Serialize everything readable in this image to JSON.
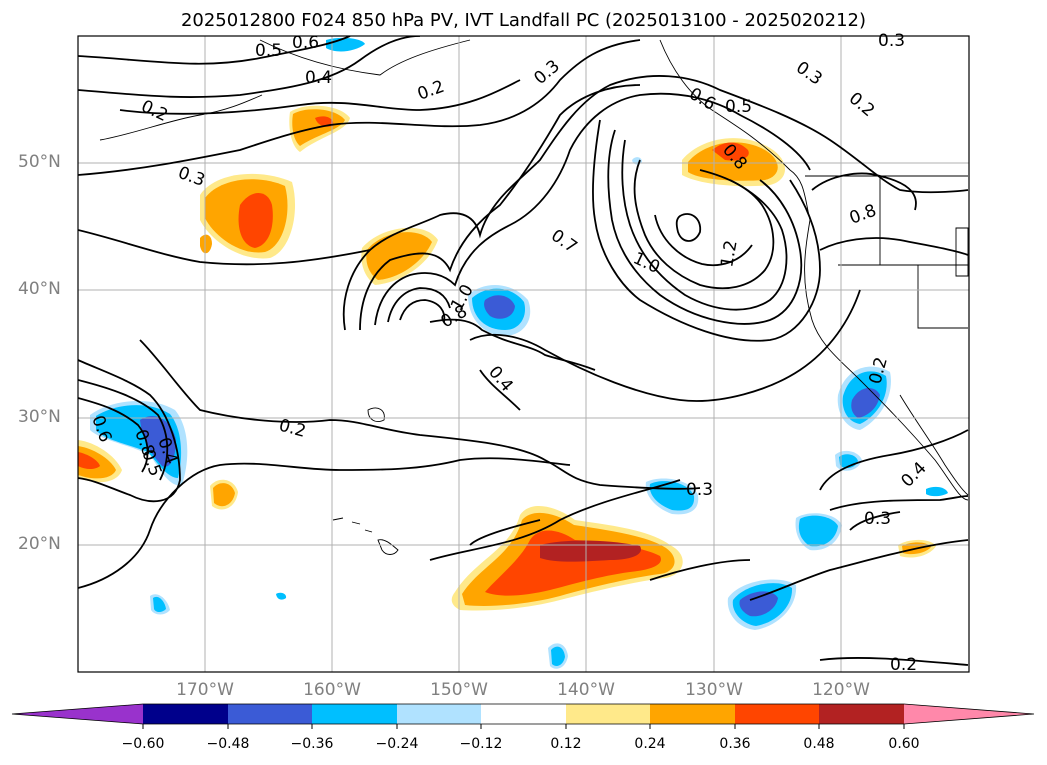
{
  "title": "2025012800 F024 850 hPa PV, IVT Landfall PC (2025013100 - 2025020212)",
  "map": {
    "lat_labels": [
      "50°N",
      "40°N",
      "30°N",
      "20°N"
    ],
    "lon_labels": [
      "170°W",
      "160°W",
      "150°W",
      "140°W",
      "130°W",
      "120°W"
    ],
    "contour_labels": [
      "0.5",
      "0.6",
      "0.4",
      "0.2",
      "0.3",
      "0.2",
      "0.3",
      "0.3",
      "0.2",
      "0.6",
      "0.5",
      "0.8",
      "0.8",
      "0.7",
      "1.0",
      "1.2",
      "0.8",
      "1.0",
      "0.4",
      "0.6",
      "0.8",
      "0.4",
      "0.5",
      "0.2",
      "0.2",
      "0.3",
      "0.3",
      "0.4",
      "0.2",
      "0.3"
    ],
    "gridlines": true,
    "coastlines": true
  },
  "colorbar": {
    "ticks": [
      "−0.60",
      "−0.48",
      "−0.36",
      "−0.24",
      "−0.12",
      "0.12",
      "0.24",
      "0.36",
      "0.48",
      "0.60"
    ],
    "colors": [
      "#9932cc",
      "#00008b",
      "#3b5bd6",
      "#00bfff",
      "#b0e2ff",
      "#ffffff",
      "#ffe98a",
      "#ffa500",
      "#ff4500",
      "#b22222",
      "#ff88aa"
    ],
    "extend": "both"
  }
}
